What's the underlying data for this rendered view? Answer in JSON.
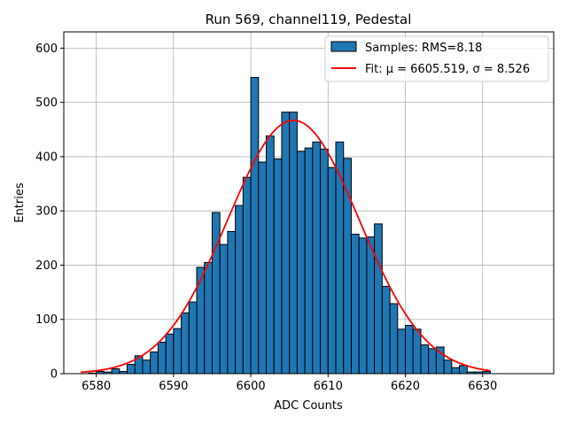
{
  "chart_data": {
    "type": "bar",
    "title": "Run 569, channel119, Pedestal",
    "xlabel": "ADC Counts",
    "ylabel": "Entries",
    "xlim": [
      6575.8,
      6639.2
    ],
    "ylim": [
      0,
      630
    ],
    "xticks": [
      6580,
      6590,
      6600,
      6610,
      6620,
      6630
    ],
    "yticks": [
      0,
      100,
      200,
      300,
      400,
      500,
      600
    ],
    "grid": true,
    "legend_position": "top-right",
    "bin_width": 1,
    "series": [
      {
        "name": "Samples: RMS=8.18",
        "type": "histogram",
        "color": "#1f77b4",
        "edgecolor": "#000000",
        "bins": [
          {
            "x": 6579.5,
            "y": 1
          },
          {
            "x": 6580.5,
            "y": 4
          },
          {
            "x": 6581.5,
            "y": 3
          },
          {
            "x": 6582.5,
            "y": 9
          },
          {
            "x": 6583.5,
            "y": 4
          },
          {
            "x": 6584.5,
            "y": 17
          },
          {
            "x": 6585.5,
            "y": 33
          },
          {
            "x": 6586.5,
            "y": 25
          },
          {
            "x": 6587.5,
            "y": 40
          },
          {
            "x": 6588.5,
            "y": 58
          },
          {
            "x": 6589.5,
            "y": 73
          },
          {
            "x": 6590.5,
            "y": 83
          },
          {
            "x": 6591.5,
            "y": 112
          },
          {
            "x": 6592.5,
            "y": 132
          },
          {
            "x": 6593.5,
            "y": 196
          },
          {
            "x": 6594.5,
            "y": 205
          },
          {
            "x": 6595.5,
            "y": 297
          },
          {
            "x": 6596.5,
            "y": 238
          },
          {
            "x": 6597.5,
            "y": 262
          },
          {
            "x": 6598.5,
            "y": 310
          },
          {
            "x": 6599.5,
            "y": 362
          },
          {
            "x": 6600.5,
            "y": 546
          },
          {
            "x": 6601.5,
            "y": 390
          },
          {
            "x": 6602.5,
            "y": 438
          },
          {
            "x": 6603.5,
            "y": 396
          },
          {
            "x": 6604.5,
            "y": 482
          },
          {
            "x": 6605.5,
            "y": 482
          },
          {
            "x": 6606.5,
            "y": 410
          },
          {
            "x": 6607.5,
            "y": 416
          },
          {
            "x": 6608.5,
            "y": 427
          },
          {
            "x": 6609.5,
            "y": 414
          },
          {
            "x": 6610.5,
            "y": 380
          },
          {
            "x": 6611.5,
            "y": 427
          },
          {
            "x": 6612.5,
            "y": 397
          },
          {
            "x": 6613.5,
            "y": 257
          },
          {
            "x": 6614.5,
            "y": 250
          },
          {
            "x": 6615.5,
            "y": 252
          },
          {
            "x": 6616.5,
            "y": 276
          },
          {
            "x": 6617.5,
            "y": 161
          },
          {
            "x": 6618.5,
            "y": 129
          },
          {
            "x": 6619.5,
            "y": 82
          },
          {
            "x": 6620.5,
            "y": 89
          },
          {
            "x": 6621.5,
            "y": 82
          },
          {
            "x": 6622.5,
            "y": 53
          },
          {
            "x": 6623.5,
            "y": 46
          },
          {
            "x": 6624.5,
            "y": 49
          },
          {
            "x": 6625.5,
            "y": 25
          },
          {
            "x": 6626.5,
            "y": 11
          },
          {
            "x": 6627.5,
            "y": 15
          },
          {
            "x": 6628.5,
            "y": 3
          },
          {
            "x": 6629.5,
            "y": 3
          },
          {
            "x": 6630.5,
            "y": 4
          }
        ]
      },
      {
        "name": "Fit: μ = 6605.519, σ = 8.526",
        "type": "line",
        "color": "#ff0000",
        "fit": {
          "model": "gaussian",
          "mu": 6605.519,
          "sigma": 8.526,
          "amplitude": 467,
          "x_range": [
            6578,
            6631
          ]
        }
      }
    ]
  }
}
